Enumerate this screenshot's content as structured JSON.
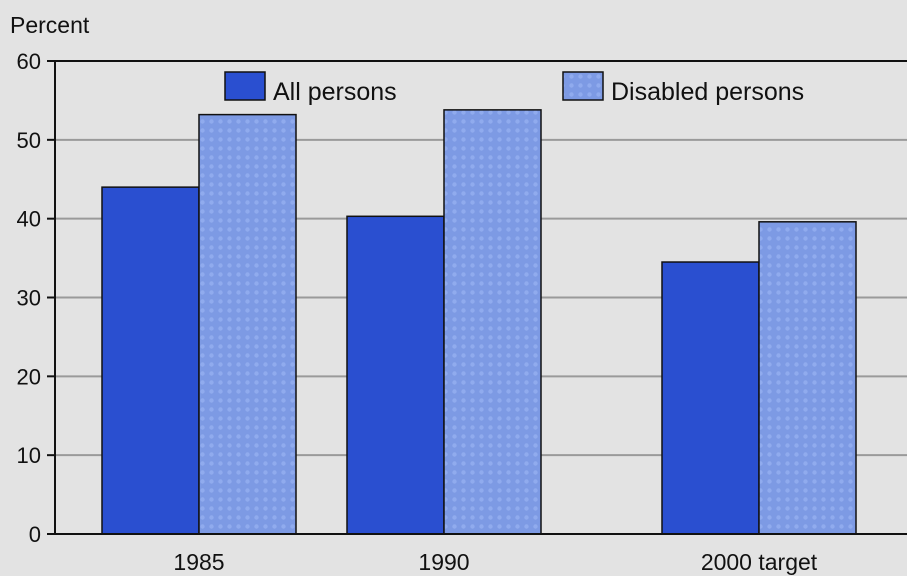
{
  "chart_data": {
    "type": "bar",
    "ylabel": "Percent",
    "ylim": [
      0,
      60
    ],
    "yticks": [
      0,
      10,
      20,
      30,
      40,
      50,
      60
    ],
    "grid": true,
    "legend_position": "top",
    "categories": [
      "1985",
      "1990",
      "2000 target"
    ],
    "series": [
      {
        "name": "All persons",
        "values": [
          44,
          40.3,
          34.5
        ],
        "color": "#2a4fd0"
      },
      {
        "name": "Disabled persons",
        "values": [
          53.2,
          53.8,
          39.6
        ],
        "color": "#7d9ae4"
      }
    ]
  }
}
